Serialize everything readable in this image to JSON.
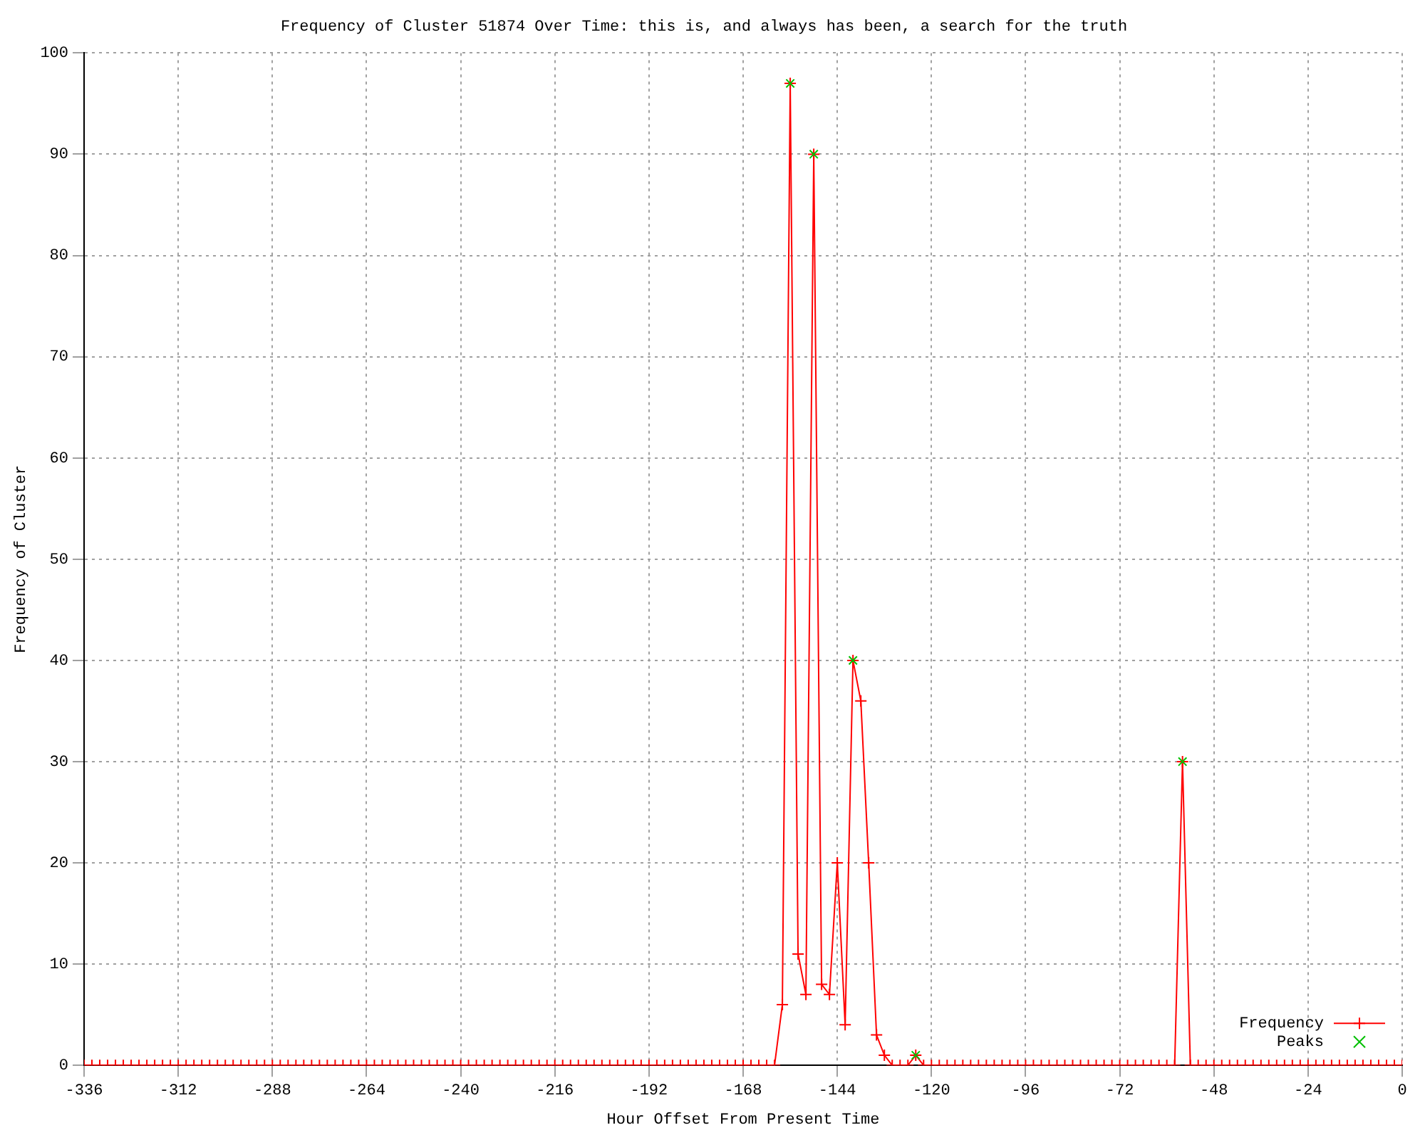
{
  "chart_data": {
    "type": "line",
    "title": "Frequency of Cluster 51874 Over Time: this is, and always has been, a search for the truth",
    "xlabel": "Hour Offset From Present Time",
    "ylabel": "Frequency of Cluster",
    "xlim": [
      -336,
      0
    ],
    "xticks": [
      -336,
      -312,
      -288,
      -264,
      -240,
      -216,
      -192,
      -168,
      -144,
      -120,
      -96,
      -72,
      -48,
      -24,
      0
    ],
    "ylim": [
      0,
      100
    ],
    "yticks": [
      0,
      10,
      20,
      30,
      40,
      50,
      60,
      70,
      80,
      90,
      100
    ],
    "grid": true,
    "legend": "bottom right",
    "series": [
      {
        "name": "Frequency",
        "color": "#ff0000",
        "marker": "cross",
        "x": [
          -336,
          -334,
          -332,
          -330,
          -328,
          -326,
          -324,
          -322,
          -320,
          -318,
          -316,
          -314,
          -312,
          -310,
          -308,
          -306,
          -304,
          -302,
          -300,
          -298,
          -296,
          -294,
          -292,
          -290,
          -288,
          -286,
          -284,
          -282,
          -280,
          -278,
          -276,
          -274,
          -272,
          -270,
          -268,
          -266,
          -264,
          -262,
          -260,
          -258,
          -256,
          -254,
          -252,
          -250,
          -248,
          -246,
          -244,
          -242,
          -240,
          -238,
          -236,
          -234,
          -232,
          -230,
          -228,
          -226,
          -224,
          -222,
          -220,
          -218,
          -216,
          -214,
          -212,
          -210,
          -208,
          -206,
          -204,
          -202,
          -200,
          -198,
          -196,
          -194,
          -192,
          -190,
          -188,
          -186,
          -184,
          -182,
          -180,
          -178,
          -176,
          -174,
          -172,
          -170,
          -168,
          -166,
          -164,
          -162,
          -160,
          -158,
          -156,
          -154,
          -152,
          -150,
          -148,
          -146,
          -144,
          -142,
          -140,
          -138,
          -136,
          -134,
          -132,
          -130,
          -128,
          -126,
          -124,
          -122,
          -120,
          -118,
          -116,
          -114,
          -112,
          -110,
          -108,
          -106,
          -104,
          -102,
          -100,
          -98,
          -96,
          -94,
          -92,
          -90,
          -88,
          -86,
          -84,
          -82,
          -80,
          -78,
          -76,
          -74,
          -72,
          -70,
          -68,
          -66,
          -64,
          -62,
          -60,
          -58,
          -56,
          -54,
          -52,
          -50,
          -48,
          -46,
          -44,
          -42,
          -40,
          -38,
          -36,
          -34,
          -32,
          -30,
          -28,
          -26,
          -24,
          -22,
          -20,
          -18,
          -16,
          -14,
          -12,
          -10,
          -8,
          -6,
          -4,
          -2,
          0
        ],
        "values": [
          0,
          0,
          0,
          0,
          0,
          0,
          0,
          0,
          0,
          0,
          0,
          0,
          0,
          0,
          0,
          0,
          0,
          0,
          0,
          0,
          0,
          0,
          0,
          0,
          0,
          0,
          0,
          0,
          0,
          0,
          0,
          0,
          0,
          0,
          0,
          0,
          0,
          0,
          0,
          0,
          0,
          0,
          0,
          0,
          0,
          0,
          0,
          0,
          0,
          0,
          0,
          0,
          0,
          0,
          0,
          0,
          0,
          0,
          0,
          0,
          0,
          0,
          0,
          0,
          0,
          0,
          0,
          0,
          0,
          0,
          0,
          0,
          0,
          0,
          0,
          0,
          0,
          0,
          0,
          0,
          0,
          0,
          0,
          0,
          0,
          0,
          0,
          0,
          0,
          6,
          97,
          11,
          7,
          90,
          8,
          7,
          20,
          4,
          40,
          36,
          20,
          3,
          1,
          0,
          0,
          0,
          1,
          0,
          0,
          0,
          0,
          0,
          0,
          0,
          0,
          0,
          0,
          0,
          0,
          0,
          0,
          0,
          0,
          0,
          0,
          0,
          0,
          0,
          0,
          0,
          0,
          0,
          0,
          0,
          0,
          0,
          0,
          0,
          0,
          0,
          30,
          0,
          0,
          0,
          0,
          0,
          0,
          0,
          0,
          0,
          0,
          0,
          0,
          0,
          0,
          0,
          0,
          0,
          0,
          0,
          0,
          0,
          0,
          0,
          0,
          0,
          0,
          0,
          0
        ]
      },
      {
        "name": "Peaks",
        "type": "scatter",
        "color": "#00c000",
        "marker": "cross",
        "x": [
          -156,
          -150,
          -140,
          -124,
          -56
        ],
        "values": [
          97,
          90,
          40,
          1,
          30
        ]
      }
    ]
  }
}
